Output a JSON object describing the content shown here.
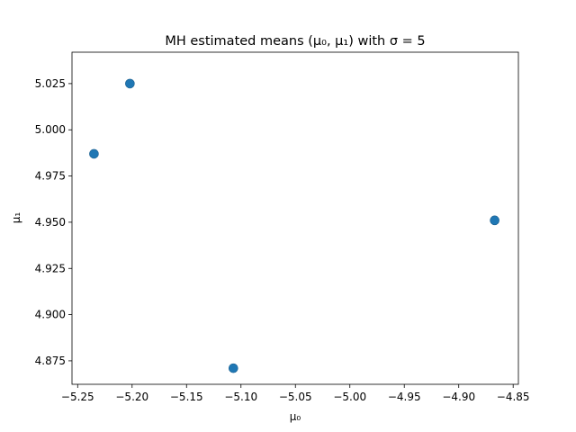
{
  "chart_data": {
    "type": "scatter",
    "title": "MH estimated means (μ₀, μ₁) with σ = 5",
    "xlabel": "μ₀",
    "ylabel": "μ₁",
    "xlim": [
      -5.2552,
      -4.8452
    ],
    "ylim": [
      4.8623,
      5.042
    ],
    "x_ticks": [
      -5.25,
      -5.2,
      -5.15,
      -5.1,
      -5.05,
      -5.0,
      -4.95,
      -4.9,
      -4.85
    ],
    "x_tick_labels": [
      "−5.25",
      "−5.20",
      "−5.15",
      "−5.10",
      "−5.05",
      "−5.00",
      "−4.95",
      "−4.90",
      "−4.85"
    ],
    "y_ticks": [
      4.875,
      4.9,
      4.925,
      4.95,
      4.975,
      5.0,
      5.025
    ],
    "y_tick_labels": [
      "4.875",
      "4.900",
      "4.925",
      "4.950",
      "4.975",
      "5.000",
      "5.025"
    ],
    "grid": false,
    "marker_color": "#1f77b4",
    "points": [
      {
        "x": -5.235,
        "y": 4.987
      },
      {
        "x": -5.202,
        "y": 5.025
      },
      {
        "x": -5.107,
        "y": 4.871
      },
      {
        "x": -4.867,
        "y": 4.951
      }
    ]
  }
}
